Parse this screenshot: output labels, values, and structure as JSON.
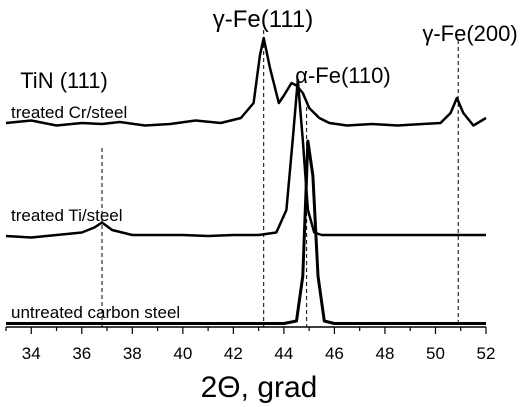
{
  "chart_data": {
    "type": "line",
    "title": "",
    "xlabel": "2Θ, grad",
    "ylabel": "",
    "xlim": [
      33,
      52
    ],
    "x_ticks": [
      34,
      36,
      38,
      40,
      42,
      44,
      46,
      48,
      50,
      52
    ],
    "y_ticks_shown": false,
    "grid": false,
    "legend": "none",
    "series": [
      {
        "name": "treated Cr/steel",
        "color": "#000000",
        "x": [
          33.0,
          34.0,
          35.0,
          36.0,
          36.8,
          37.5,
          38.5,
          39.5,
          40.5,
          41.5,
          42.3,
          42.8,
          43.05,
          43.2,
          43.45,
          43.8,
          44.0,
          44.3,
          44.5,
          44.75,
          45.0,
          45.4,
          45.8,
          46.5,
          47.5,
          48.5,
          49.5,
          50.2,
          50.6,
          50.85,
          51.1,
          51.5,
          52.0
        ],
        "y": [
          1.0,
          1.5,
          0.5,
          1.0,
          0.8,
          1.2,
          0.5,
          0.8,
          1.5,
          1.0,
          2.0,
          5.0,
          14.5,
          18.0,
          12.0,
          5.0,
          6.5,
          9.0,
          8.5,
          7.0,
          4.0,
          2.0,
          1.0,
          0.5,
          0.8,
          0.5,
          0.8,
          1.0,
          3.0,
          6.0,
          3.0,
          0.5,
          2.0
        ]
      },
      {
        "name": "treated Ti/steel",
        "color": "#000000",
        "x": [
          33.0,
          34.0,
          35.0,
          36.0,
          36.5,
          36.8,
          37.2,
          38.0,
          39.0,
          40.0,
          41.0,
          42.0,
          43.0,
          43.7,
          44.1,
          44.35,
          44.55,
          44.75,
          44.95,
          45.2,
          45.5,
          46.0,
          47.0,
          48.0,
          49.0,
          50.0,
          51.0,
          52.0
        ],
        "y": [
          0.8,
          0.5,
          1.0,
          1.5,
          2.5,
          3.5,
          2.0,
          1.0,
          1.0,
          1.0,
          0.8,
          1.0,
          1.0,
          1.5,
          6.0,
          20.0,
          32.0,
          20.0,
          6.0,
          1.5,
          1.0,
          1.0,
          1.0,
          1.0,
          1.0,
          1.0,
          1.0,
          1.0
        ]
      },
      {
        "name": "untreated carbon steel",
        "color": "#000000",
        "x": [
          33.0,
          35.0,
          37.0,
          39.0,
          41.0,
          43.0,
          44.0,
          44.5,
          44.75,
          44.95,
          45.15,
          45.35,
          45.6,
          46.0,
          47.0,
          49.0,
          51.0,
          52.0
        ],
        "y": [
          0.5,
          0.5,
          0.5,
          0.5,
          0.5,
          0.5,
          0.5,
          1.0,
          10.0,
          37.0,
          30.0,
          10.0,
          1.0,
          0.5,
          0.5,
          0.5,
          0.5,
          0.5
        ]
      }
    ],
    "annotations": [
      {
        "text": "TiN (111)",
        "x": 36.8
      },
      {
        "text": "γ-Fe(111)",
        "x": 43.2
      },
      {
        "text": "α-Fe(110)",
        "x": 44.9
      },
      {
        "text": "γ-Fe(200)",
        "x": 50.9
      }
    ]
  }
}
